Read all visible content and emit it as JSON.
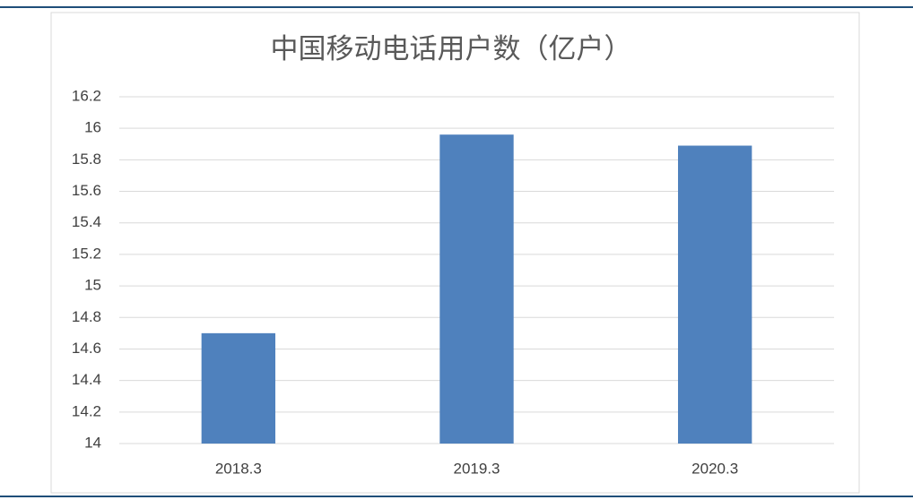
{
  "chart_data": {
    "type": "bar",
    "title": "中国移动电话用户数（亿户）",
    "categories": [
      "2018.3",
      "2019.3",
      "2020.3"
    ],
    "values": [
      14.7,
      15.96,
      15.89
    ],
    "color": "#4f81bd",
    "ylim": [
      14,
      16.2
    ],
    "yticks": [
      14,
      14.2,
      14.4,
      14.6,
      14.8,
      15,
      15.2,
      15.4,
      15.6,
      15.8,
      16,
      16.2
    ],
    "grid": true
  }
}
